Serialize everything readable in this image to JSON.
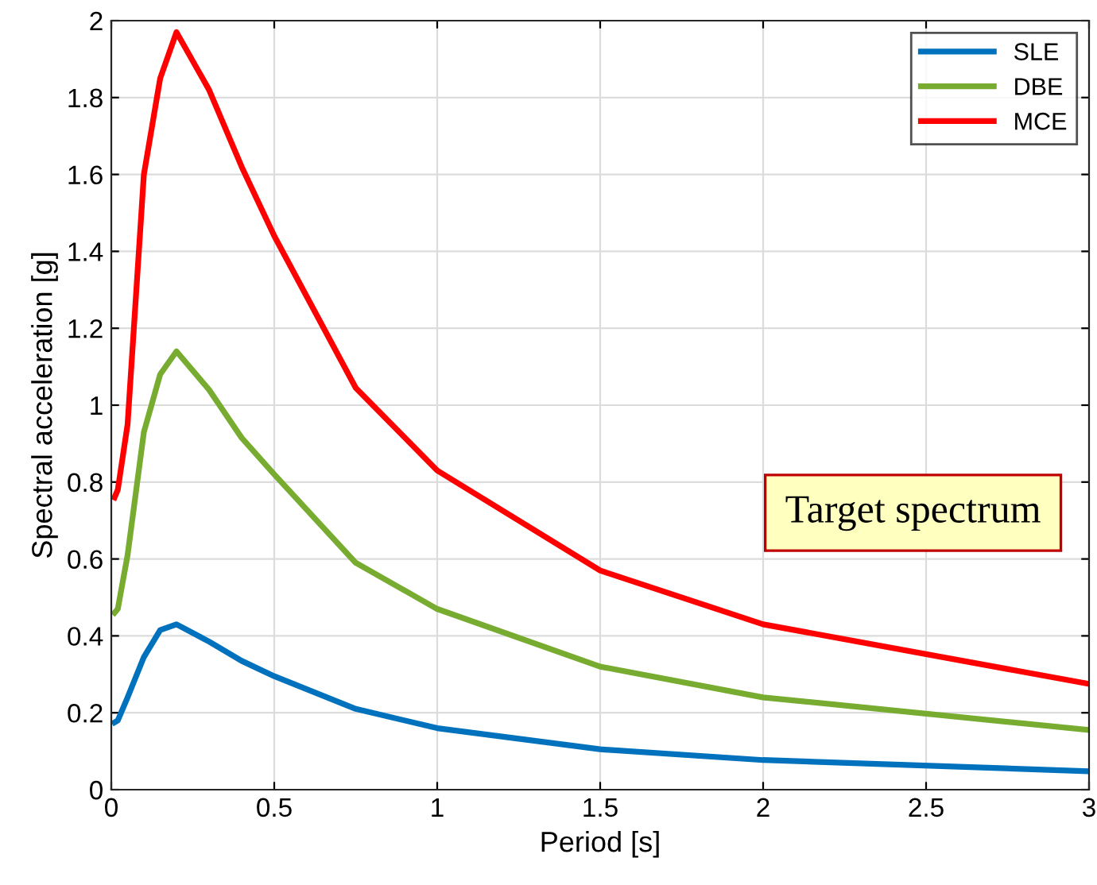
{
  "chart_data": {
    "type": "line",
    "xlabel": "Period [s]",
    "ylabel": "Spectral acceleration [g]",
    "x": [
      0.01,
      0.02,
      0.05,
      0.1,
      0.15,
      0.2,
      0.3,
      0.4,
      0.5,
      0.75,
      1,
      1.5,
      2,
      3
    ],
    "series": [
      {
        "name": "SLE",
        "color": "#0072bd",
        "values": [
          0.175,
          0.18,
          0.24,
          0.345,
          0.415,
          0.43,
          0.385,
          0.335,
          0.295,
          0.21,
          0.16,
          0.105,
          0.077,
          0.048
        ]
      },
      {
        "name": "DBE",
        "color": "#77ac30",
        "values": [
          0.46,
          0.47,
          0.61,
          0.93,
          1.08,
          1.14,
          1.04,
          0.915,
          0.82,
          0.59,
          0.47,
          0.32,
          0.24,
          0.155
        ]
      },
      {
        "name": "MCE",
        "color": "#ff0000",
        "values": [
          0.76,
          0.78,
          0.95,
          1.6,
          1.85,
          1.97,
          1.82,
          1.62,
          1.44,
          1.045,
          0.83,
          0.57,
          0.43,
          0.275
        ]
      }
    ],
    "xlim": [
      0,
      3
    ],
    "ylim": [
      0,
      2
    ],
    "xticks": [
      0,
      0.5,
      1,
      1.5,
      2,
      2.5,
      3
    ],
    "yticks": [
      0,
      0.2,
      0.4,
      0.6,
      0.8,
      1,
      1.2,
      1.4,
      1.6,
      1.8,
      2
    ],
    "grid": true,
    "legend": "top right",
    "marker": "none",
    "line_style": "solid",
    "annotations": [
      "Target spectrum"
    ]
  }
}
